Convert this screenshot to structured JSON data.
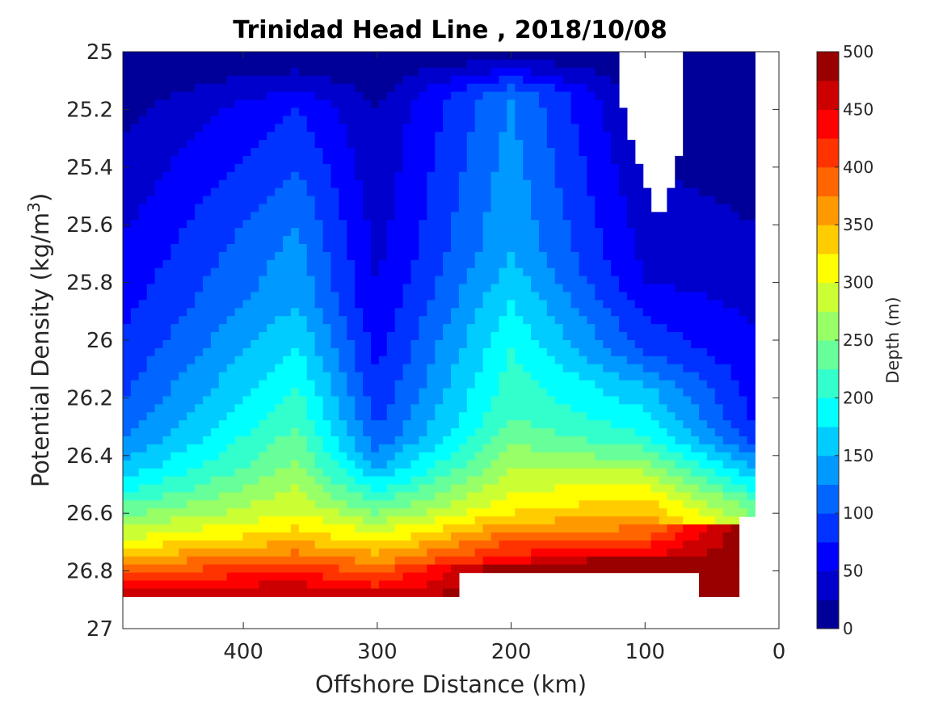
{
  "chart_data": {
    "type": "filled-contour",
    "title": "Trinidad Head Line , 2018/10/08",
    "xlabel": "Offshore Distance (km)",
    "ylabel_parts": [
      "Potential Density (kg/m",
      "3",
      ")"
    ],
    "x_ticks": [
      "400",
      "300",
      "200",
      "100",
      "0"
    ],
    "x_tick_values": [
      400,
      300,
      200,
      100,
      0
    ],
    "xlim": [
      490,
      0
    ],
    "x_reversed": true,
    "y_ticks": [
      "25",
      "25.2",
      "25.4",
      "25.6",
      "25.8",
      "26",
      "26.2",
      "26.4",
      "26.6",
      "26.8",
      "27"
    ],
    "y_tick_values": [
      25,
      25.2,
      25.4,
      25.6,
      25.8,
      26,
      26.2,
      26.4,
      26.6,
      26.8,
      27
    ],
    "ylim": [
      25,
      27
    ],
    "y_reversed": true,
    "colorbar": {
      "label": "Depth (m)",
      "ticks": [
        "0",
        "50",
        "100",
        "150",
        "200",
        "250",
        "300",
        "350",
        "400",
        "450",
        "500"
      ],
      "tick_values": [
        0,
        50,
        100,
        150,
        200,
        250,
        300,
        350,
        400,
        450,
        500
      ],
      "range": [
        0,
        500
      ],
      "levels": 20,
      "colormap": "jet"
    },
    "contour_levels_m": [
      25,
      50,
      75,
      100,
      125,
      150,
      175,
      200,
      225,
      250,
      275,
      300,
      325,
      350,
      375,
      400,
      425,
      450,
      475
    ],
    "profiles": [
      {
        "x": 490,
        "depth_at_isopycnal": [
          {
            "sigma": 25.3,
            "depth": 25
          },
          {
            "sigma": 25.65,
            "depth": 50
          },
          {
            "sigma": 25.98,
            "depth": 75
          },
          {
            "sigma": 26.22,
            "depth": 100
          },
          {
            "sigma": 26.34,
            "depth": 125
          },
          {
            "sigma": 26.42,
            "depth": 150
          },
          {
            "sigma": 26.48,
            "depth": 175
          },
          {
            "sigma": 26.53,
            "depth": 200
          },
          {
            "sigma": 26.57,
            "depth": 225
          },
          {
            "sigma": 26.61,
            "depth": 250
          },
          {
            "sigma": 26.65,
            "depth": 275
          },
          {
            "sigma": 26.69,
            "depth": 300
          },
          {
            "sigma": 26.72,
            "depth": 325
          },
          {
            "sigma": 26.75,
            "depth": 350
          },
          {
            "sigma": 26.78,
            "depth": 375
          },
          {
            "sigma": 26.81,
            "depth": 400
          },
          {
            "sigma": 26.84,
            "depth": 425
          },
          {
            "sigma": 26.86,
            "depth": 450
          },
          {
            "sigma": 26.88,
            "depth": 475
          }
        ]
      },
      {
        "x": 360,
        "depth_at_isopycnal": [
          {
            "sigma": 25.2,
            "depth": 75
          },
          {
            "sigma": 25.6,
            "depth": 125
          },
          {
            "sigma": 25.88,
            "depth": 150
          },
          {
            "sigma": 26.15,
            "depth": 200
          },
          {
            "sigma": 26.42,
            "depth": 250
          },
          {
            "sigma": 26.6,
            "depth": 300
          },
          {
            "sigma": 26.7,
            "depth": 350
          },
          {
            "sigma": 26.8,
            "depth": 425
          },
          {
            "sigma": 26.88,
            "depth": 475
          }
        ]
      },
      {
        "x": 300,
        "depth_at_isopycnal": [
          {
            "sigma": 25.2,
            "depth": 25
          },
          {
            "sigma": 25.85,
            "depth": 50
          },
          {
            "sigma": 26.12,
            "depth": 75
          },
          {
            "sigma": 26.32,
            "depth": 100
          },
          {
            "sigma": 26.45,
            "depth": 150
          },
          {
            "sigma": 26.6,
            "depth": 250
          },
          {
            "sigma": 26.74,
            "depth": 350
          },
          {
            "sigma": 26.85,
            "depth": 425
          },
          {
            "sigma": 26.9,
            "depth": 475
          }
        ]
      },
      {
        "x": 200,
        "depth_at_isopycnal": [
          {
            "sigma": 25.15,
            "depth": 125
          },
          {
            "sigma": 25.7,
            "depth": 150
          },
          {
            "sigma": 26.03,
            "depth": 200
          },
          {
            "sigma": 26.27,
            "depth": 225
          },
          {
            "sigma": 26.45,
            "depth": 275
          },
          {
            "sigma": 26.6,
            "depth": 325
          },
          {
            "sigma": 26.7,
            "depth": 400
          },
          {
            "sigma": 26.78,
            "depth": 450
          }
        ]
      },
      {
        "x": 100,
        "depth_at_isopycnal": [
          {
            "sigma": 25.8,
            "depth": 50
          },
          {
            "sigma": 26.05,
            "depth": 100
          },
          {
            "sigma": 26.15,
            "depth": 150
          },
          {
            "sigma": 26.33,
            "depth": 200
          },
          {
            "sigma": 26.5,
            "depth": 300
          },
          {
            "sigma": 26.65,
            "depth": 375
          },
          {
            "sigma": 26.75,
            "depth": 450
          }
        ]
      },
      {
        "x": 20,
        "depth_at_isopycnal": [
          {
            "sigma": 25.6,
            "depth": 25
          },
          {
            "sigma": 26.3,
            "depth": 75
          },
          {
            "sigma": 26.45,
            "depth": 150
          },
          {
            "sigma": 26.55,
            "depth": 225
          },
          {
            "sigma": 26.65,
            "depth": 275
          }
        ]
      }
    ],
    "grid": false,
    "legend": "colorbar-right"
  }
}
